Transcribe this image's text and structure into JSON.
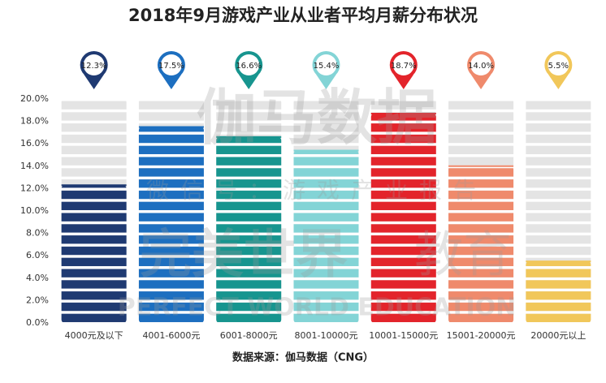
{
  "chart_data": {
    "type": "bar",
    "title": "2018年9月游戏产业从业者平均月薪分布状况",
    "categories": [
      "4000元及以下",
      "4001-6000元",
      "6001-8000元",
      "8001-10000元",
      "10001-15000元",
      "15001-20000元",
      "20000元以上"
    ],
    "values": [
      12.3,
      17.5,
      16.6,
      15.4,
      18.7,
      14.0,
      5.5
    ],
    "value_labels": [
      "12.3%",
      "17.5%",
      "16.6%",
      "15.4%",
      "18.7%",
      "14.0%",
      "5.5%"
    ],
    "colors": [
      "#1f3a72",
      "#1d6fc0",
      "#17958f",
      "#83d4d6",
      "#e3242b",
      "#ef8a6c",
      "#f1c75a"
    ],
    "ylim": [
      0,
      20
    ],
    "yticks": [
      {
        "value": 0,
        "label": "0.0%"
      },
      {
        "value": 2,
        "label": "2.0%"
      },
      {
        "value": 4,
        "label": "4.0%"
      },
      {
        "value": 6,
        "label": "6.0%"
      },
      {
        "value": 8,
        "label": "8.0%"
      },
      {
        "value": 10,
        "label": "10.0%"
      },
      {
        "value": 12,
        "label": "12.0%"
      },
      {
        "value": 14,
        "label": "14.0%"
      },
      {
        "value": 16,
        "label": "16.0%"
      },
      {
        "value": 18,
        "label": "18.0%"
      },
      {
        "value": 20,
        "label": "20.0%"
      }
    ],
    "source": "数据来源：伽马数据（CNG）",
    "watermarks": [
      "伽马数据",
      "微信号：游戏产业报告",
      "完美世界",
      "教育",
      "PERFECT WORLD EDUCATION"
    ]
  }
}
